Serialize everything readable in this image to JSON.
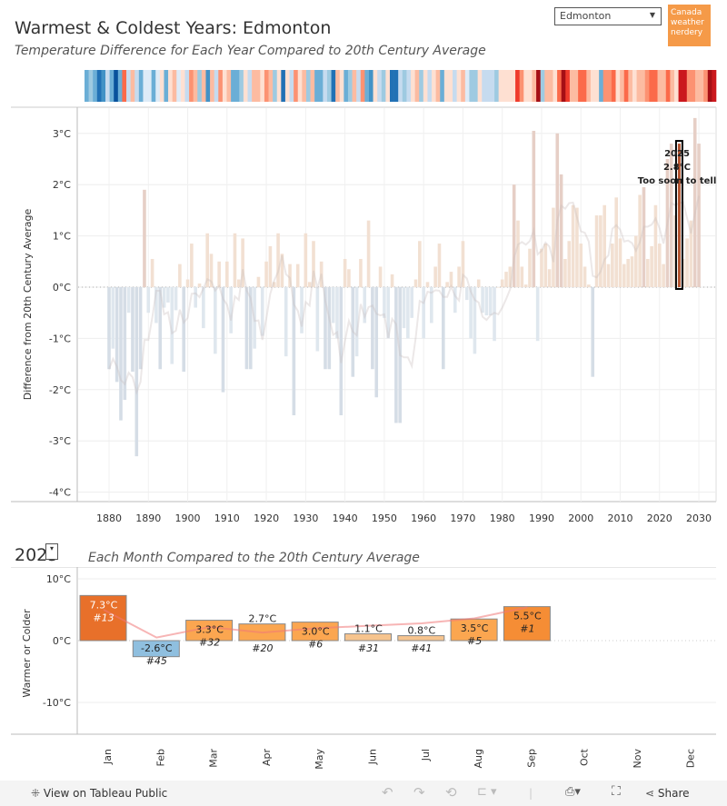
{
  "header": {
    "title": "Warmest & Coldest Years: Edmonton",
    "subtitle": "Temperature Difference for Each Year Compared to 20th Century Average",
    "city_select": {
      "value": "Edmonton",
      "arrow_icon": "caret-down-icon"
    },
    "brand_label": [
      "Canada",
      "weather",
      "nerdery"
    ]
  },
  "chart_data": [
    {
      "type": "bar",
      "title": "Temperature Difference for Each Year Compared to 20th Century Average",
      "xlabel": "",
      "ylabel": "Difference from 20th Century Average",
      "ylim": [
        -4.2,
        3.5
      ],
      "xlim": [
        1872,
        2034
      ],
      "yticks": [
        "3°C",
        "2°C",
        "1°C",
        "0°C",
        "-1°C",
        "-2°C",
        "-3°C",
        "-4°C"
      ],
      "ytick_values": [
        3,
        2,
        1,
        0,
        -1,
        -2,
        -3,
        -4
      ],
      "xticks": [
        "1880",
        "1890",
        "1900",
        "1910",
        "1920",
        "1930",
        "1940",
        "1950",
        "1960",
        "1970",
        "1980",
        "1990",
        "2000",
        "2010",
        "2020",
        "2030"
      ],
      "xtick_values": [
        1880,
        1890,
        1900,
        1910,
        1920,
        1930,
        1940,
        1950,
        1960,
        1970,
        1980,
        1990,
        2000,
        2010,
        2020,
        2030
      ],
      "grid": true,
      "start_year": 1880,
      "values": [
        -1.6,
        -1.2,
        -1.85,
        -2.6,
        -2.2,
        -0.5,
        -1.65,
        -3.3,
        -1.6,
        1.9,
        -0.5,
        0.55,
        -0.7,
        -1.6,
        -0.4,
        -0.3,
        -1.5,
        -0.45,
        0.45,
        -1.65,
        0.15,
        0.85,
        -0.4,
        0.07,
        -0.8,
        1.05,
        0.65,
        -1.3,
        0.5,
        -2.05,
        0.5,
        -0.9,
        1.05,
        0.15,
        0.95,
        -1.6,
        -1.6,
        -1.2,
        0.2,
        -0.95,
        0.5,
        0.8,
        0.1,
        1.05,
        0.65,
        -1.35,
        0.45,
        -2.5,
        0.45,
        -0.9,
        1.05,
        0.1,
        0.9,
        -1.25,
        0.5,
        -1.6,
        -1.6,
        -0.7,
        -1.0,
        -2.5,
        0.55,
        0.35,
        -1.75,
        -1.35,
        0.55,
        -0.7,
        1.3,
        -1.6,
        -2.15,
        0.4,
        -0.6,
        -1.0,
        0.25,
        -2.65,
        -2.65,
        -0.8,
        -1.0,
        -0.6,
        0.15,
        0.9,
        -1.0,
        0.1,
        -0.7,
        0.4,
        0.85,
        -1.6,
        0.1,
        0.3,
        -0.5,
        0.4,
        0.9,
        -0.25,
        -1.0,
        -1.3,
        0.15,
        -0.5,
        -0.55,
        -0.55,
        -1.05,
        0.0,
        0.15,
        0.3,
        0.4,
        2.0,
        1.3,
        0.4,
        0.05,
        0.75,
        3.05,
        -1.05,
        0.75,
        0.85,
        0.35,
        1.55,
        3.0,
        2.2,
        0.55,
        0.9,
        1.6,
        1.55,
        0.85,
        0.4,
        0.05,
        -1.75,
        1.4,
        1.4,
        1.6,
        0.45,
        0.85,
        1.75,
        0.95,
        0.45,
        0.55,
        0.6,
        1.0,
        1.8,
        1.95,
        0.55,
        0.8,
        1.6,
        0.85,
        0.45,
        2.5,
        2.8,
        1.4,
        1.05,
        0.55,
        0.95,
        1.3,
        3.3,
        2.8
      ],
      "highlight": {
        "year": 2025,
        "value_label": "2.8°C",
        "year_label": "2025",
        "note": "Too soon to tell"
      }
    },
    {
      "type": "bar",
      "title": "Each Month Compared to the 20th Century Average",
      "year_label": "2025",
      "ylabel": "Warmer or Colder",
      "ylim": [
        -15,
        12
      ],
      "yticks": [
        "10°C",
        "0°C",
        "-10°C"
      ],
      "ytick_values": [
        10,
        0,
        -10
      ],
      "categories": [
        "Jan",
        "Feb",
        "Mar",
        "Apr",
        "May",
        "Jun",
        "Jul",
        "Aug",
        "Sep",
        "Oct",
        "Nov",
        "Dec"
      ],
      "values": [
        7.3,
        -2.6,
        3.3,
        2.7,
        3.0,
        1.1,
        0.8,
        3.5,
        5.5,
        null,
        null,
        null
      ],
      "value_labels": [
        "7.3°C",
        "-2.6°C",
        "3.3°C",
        "2.7°C",
        "3.0°C",
        "1.1°C",
        "0.8°C",
        "3.5°C",
        "5.5°C",
        "",
        "",
        ""
      ],
      "rank_labels": [
        "#13",
        "#45",
        "#32",
        "#20",
        "#6",
        "#31",
        "#41",
        "#5",
        "#1",
        "",
        "",
        ""
      ],
      "trend_line": [
        5.0,
        0.5,
        2.2,
        1.3,
        2.0,
        2.4,
        2.8,
        3.6,
        5.4
      ]
    }
  ],
  "month_chart": {
    "dropdown_icon": "dropdown-icon"
  },
  "footer": {
    "view_label": "View on Tableau Public",
    "share_label": "Share"
  }
}
